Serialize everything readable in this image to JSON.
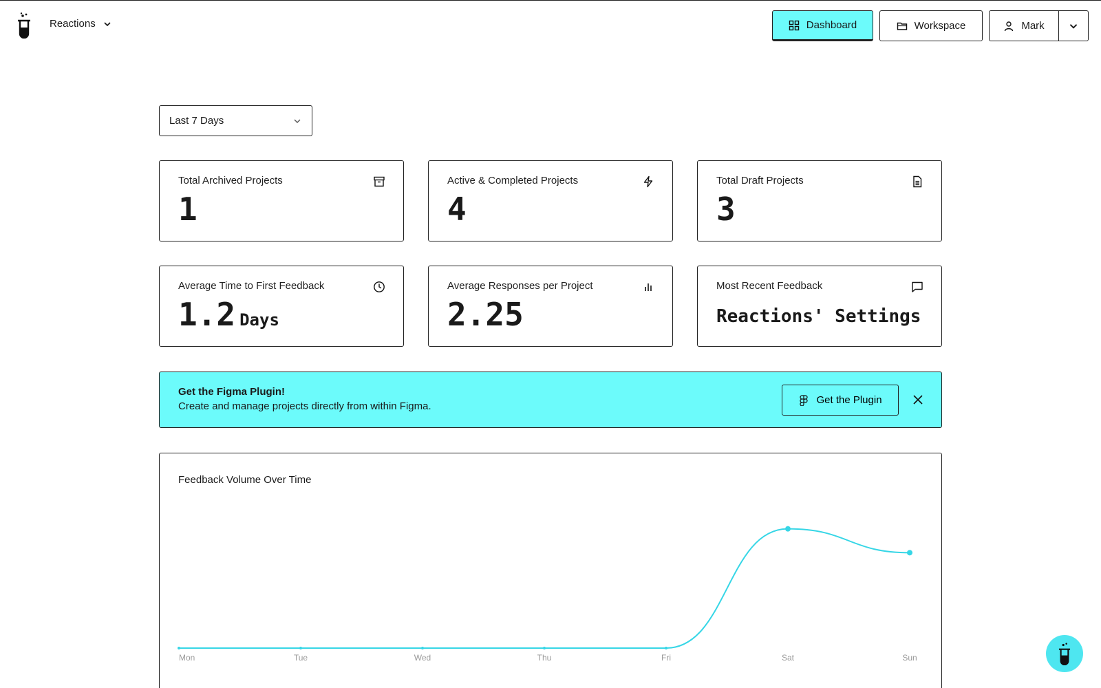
{
  "header": {
    "workspace_name": "Reactions",
    "nav": {
      "dashboard": "Dashboard",
      "workspace": "Workspace",
      "user": "Mark"
    }
  },
  "filters": {
    "range": "Last 7 Days"
  },
  "stats": {
    "archived": {
      "label": "Total Archived Projects",
      "value": "1",
      "icon": "archive-icon"
    },
    "active": {
      "label": "Active & Completed Projects",
      "value": "4",
      "icon": "lightning-icon"
    },
    "draft": {
      "label": "Total Draft Projects",
      "value": "3",
      "icon": "document-icon"
    },
    "first_feedback": {
      "label": "Average Time to First Feedback",
      "value": "1.2",
      "unit": "Days",
      "icon": "clock-icon"
    },
    "responses": {
      "label": "Average Responses per Project",
      "value": "2.25",
      "icon": "bar-chart-icon"
    },
    "recent": {
      "label": "Most Recent Feedback",
      "value": "Reactions' Settings",
      "icon": "comment-icon"
    }
  },
  "banner": {
    "title": "Get the Figma Plugin!",
    "text": "Create and manage projects directly from within Figma.",
    "button": "Get the Plugin"
  },
  "colors": {
    "accent": "#6cfbfb",
    "line": "#36d6e6"
  },
  "chart_data": {
    "type": "line",
    "title": "Feedback Volume Over Time",
    "categories": [
      "Mon",
      "Tue",
      "Wed",
      "Thu",
      "Fri",
      "Sat",
      "Sun"
    ],
    "values": [
      0,
      0,
      0,
      0,
      0,
      5,
      4
    ],
    "ylim": [
      0,
      6
    ],
    "grid": false
  }
}
